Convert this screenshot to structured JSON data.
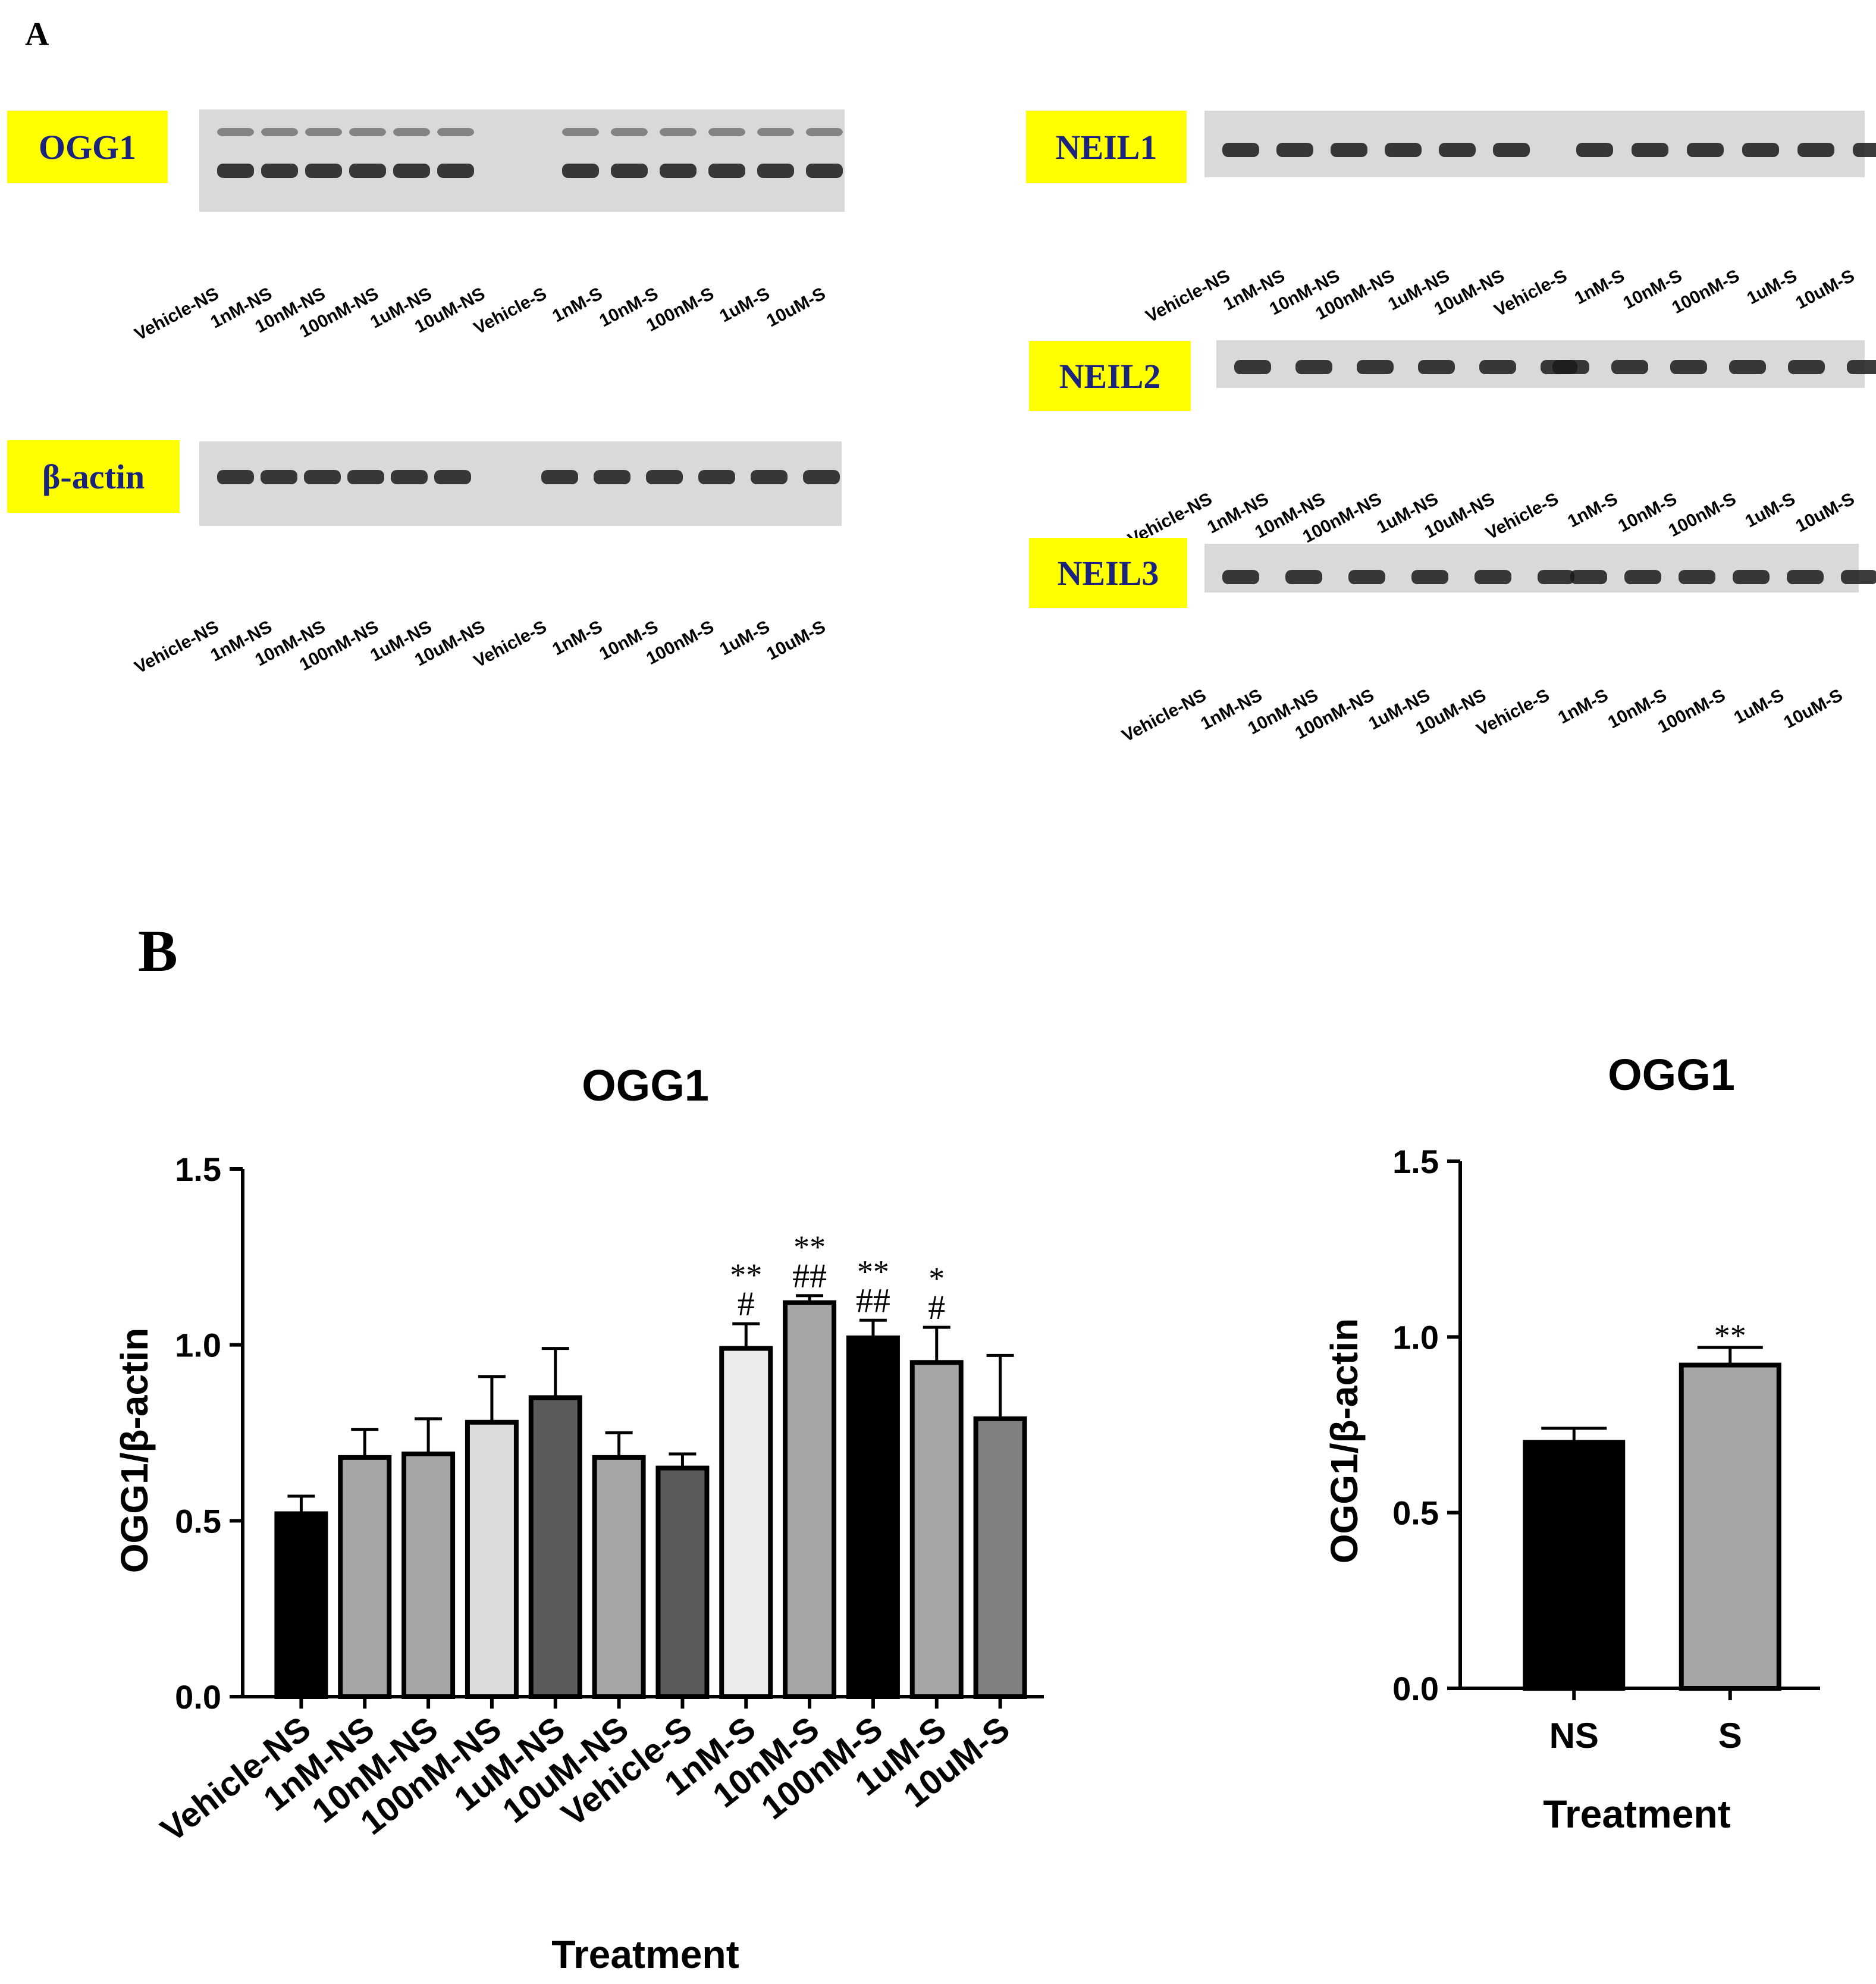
{
  "panel_a": {
    "label": "A",
    "lanes_ns": [
      "Vehicle-NS",
      "1nM-NS",
      "10nM-NS",
      "100nM-NS",
      "1uM-NS",
      "10uM-NS"
    ],
    "lanes_s": [
      "Vehicle-S",
      "1nM-S",
      "10nM-S",
      "100nM-S",
      "1uM-S",
      "10uM-S"
    ],
    "blots": [
      {
        "id": "ogg1",
        "label": "OGG1",
        "lanes_ns_text": [
          "Vehicle-NS",
          "1nM-NS",
          "10nM-NS",
          "100nM-NS",
          "1uM-NS",
          "10uM-NS"
        ],
        "lanes_s_text": [
          "Vehicle-S",
          "1nM-S",
          "10nM-S",
          "100nM-S",
          "1uM-S",
          "10uM-S"
        ]
      },
      {
        "id": "bactin",
        "label": "β-actin",
        "lanes_ns_text": [
          "Vehicle-NS",
          "1nM-NS",
          "10nM-NS",
          "100nM-NS",
          "1uM-NS",
          "10uM-NS"
        ],
        "lanes_s_text": [
          "Vehicle-S",
          "1nM-S",
          "10nM-S",
          "100nM-S",
          "1uM-S",
          "10uM-S"
        ]
      },
      {
        "id": "neil1",
        "label": "NEIL1",
        "lanes_ns_text": [
          "Vehicle-NS",
          "1nM-NS",
          "10nM-NS",
          "100nM-NS",
          "1uM-NS",
          "10uM-NS"
        ],
        "lanes_s_text": [
          "Vehicle-S",
          "1nM-S",
          "10nM-S",
          "100nM-S",
          "1uM-S",
          "10uM-S"
        ]
      },
      {
        "id": "neil2",
        "label": "NEIL2",
        "lanes_ns_text": [
          "Vehicle-NS",
          "1nM-NS",
          "10nM-NS",
          "100nM-NS",
          "1uM-NS",
          "10uM-NS"
        ],
        "lanes_s_text": [
          "Vehicle-S",
          "1nM-S",
          "10nM-S",
          "100nM-S",
          "1uM-S",
          "10uM-S"
        ]
      },
      {
        "id": "neil3",
        "label": "NEIL3",
        "lanes_ns_text": [
          "Vehicle-NS",
          "1nM-NS",
          "10nM-NS",
          "100nM-NS",
          "1uM-NS",
          "10uM-NS"
        ],
        "lanes_s_text": [
          "Vehicle-S",
          "1nM-S",
          "10nM-S",
          "100nM-S",
          "1uM-S",
          "10uM-S"
        ]
      }
    ],
    "label_bg_color": "#ffff00",
    "label_text_color": "#1a237e"
  },
  "panel_b": {
    "label": "B"
  },
  "chart_data": [
    {
      "type": "bar",
      "title": "OGG1",
      "xlabel": "Treatment",
      "ylabel": "OGG1/β-actin",
      "ylim": [
        0,
        1.5
      ],
      "yticks": [
        "0.0",
        "0.5",
        "1.0",
        "1.5"
      ],
      "grid": false,
      "categories": [
        "Vehicle-NS",
        "1nM-NS",
        "10nM-NS",
        "100nM-NS",
        "1uM-NS",
        "10uM-NS",
        "Vehicle-S",
        "1nM-S",
        "10nM-S",
        "100nM-S",
        "1uM-S",
        "10uM-S"
      ],
      "values": [
        0.52,
        0.68,
        0.69,
        0.78,
        0.85,
        0.68,
        0.65,
        0.99,
        1.12,
        1.02,
        0.95,
        0.79
      ],
      "errors": [
        0.05,
        0.08,
        0.1,
        0.13,
        0.14,
        0.07,
        0.04,
        0.07,
        0.02,
        0.05,
        0.1,
        0.18
      ],
      "colors": [
        "#000000",
        "#a6a6a6",
        "#a6a6a6",
        "#dcdcdc",
        "#5a5a5a",
        "#a6a6a6",
        "#5a5a5a",
        "#ececec",
        "#a6a6a6",
        "#000000",
        "#a6a6a6",
        "#808080"
      ],
      "annotations": [
        {
          "category": "1nM-S",
          "lines": [
            "**",
            "#"
          ]
        },
        {
          "category": "10nM-S",
          "lines": [
            "**",
            "##"
          ]
        },
        {
          "category": "100nM-S",
          "lines": [
            "**",
            "##"
          ]
        },
        {
          "category": "1uM-S",
          "lines": [
            "*",
            "#"
          ]
        }
      ]
    },
    {
      "type": "bar",
      "title": "OGG1",
      "xlabel": "Treatment",
      "ylabel": "OGG1/β-actin",
      "ylim": [
        0,
        1.5
      ],
      "yticks": [
        "0.0",
        "0.5",
        "1.0",
        "1.5"
      ],
      "grid": false,
      "categories": [
        "NS",
        "S"
      ],
      "values": [
        0.7,
        0.92
      ],
      "errors": [
        0.04,
        0.05
      ],
      "colors": [
        "#000000",
        "#a6a6a6"
      ],
      "annotations": [
        {
          "category": "S",
          "lines": [
            "**"
          ]
        }
      ]
    }
  ]
}
